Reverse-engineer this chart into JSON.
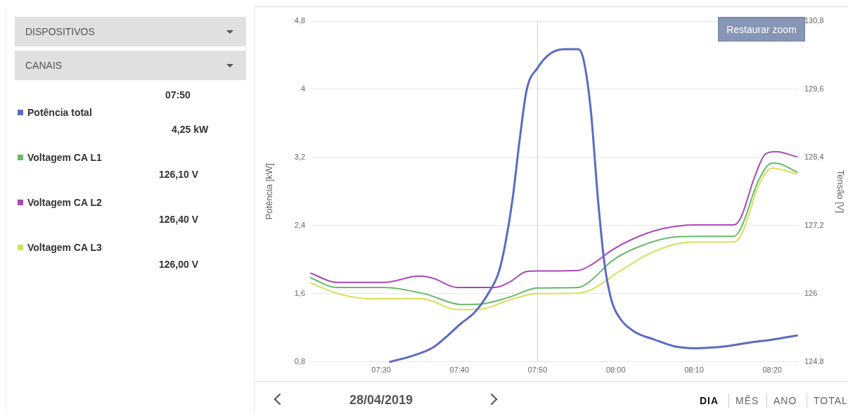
{
  "chart_data": {
    "type": "line",
    "xlabel": null,
    "ylabel": "Potência [kW]",
    "y2label": "Tensão [V]",
    "xlim": [
      7.35,
      8.39
    ],
    "xticks": [
      {
        "value": 7.5,
        "label": "07:30"
      },
      {
        "value": 7.6667,
        "label": "07:40"
      },
      {
        "value": 7.8333,
        "label": "07:50"
      },
      {
        "value": 8,
        "label": "08:00"
      },
      {
        "value": 8.1667,
        "label": "08:10"
      },
      {
        "value": 8.3333,
        "label": "08:20"
      }
    ],
    "ylim": [
      0.8,
      4.8
    ],
    "yticks": [
      {
        "value": 0.8,
        "label": "0,8"
      },
      {
        "value": 1.6,
        "label": "1,6"
      },
      {
        "value": 2.4,
        "label": "2,4"
      },
      {
        "value": 3.2,
        "label": "3,2"
      },
      {
        "value": 4,
        "label": "4"
      },
      {
        "value": 4.8,
        "label": "4,8"
      }
    ],
    "y2lim": [
      124.8,
      130.8
    ],
    "y2ticks": [
      {
        "value": 124.8,
        "label": "124,8"
      },
      {
        "value": 126,
        "label": "126"
      },
      {
        "value": 127.2,
        "label": "127,2"
      },
      {
        "value": 128.4,
        "label": "128,4"
      },
      {
        "value": 129.6,
        "label": "129,6"
      },
      {
        "value": 130.8,
        "label": "130,8"
      }
    ],
    "grid": "y",
    "legend": "left",
    "marker": "none",
    "line_style": "solid",
    "ref_lines": [
      {
        "axis": "x",
        "value": 7.833333,
        "color": "#cccccc"
      }
    ],
    "series": [
      {
        "name": "Potência total",
        "color": "#5c6bc0",
        "x": [
          7.519,
          7.566,
          7.611,
          7.64,
          7.67,
          7.699,
          7.729,
          7.751,
          7.765,
          7.78,
          7.795,
          7.81,
          7.8333,
          7.861,
          7.891,
          7.92,
          7.932,
          7.947,
          7.962,
          7.976,
          7.991,
          8.009,
          8.038,
          8.083,
          8.127,
          8.171,
          8.23,
          8.289,
          8.333,
          8.386
        ],
        "values": [
          0.8,
          0.87,
          0.97,
          1.1,
          1.25,
          1.38,
          1.61,
          1.86,
          2.2,
          2.71,
          3.4,
          3.99,
          4.25,
          4.42,
          4.47,
          4.47,
          4.33,
          3.74,
          2.71,
          1.95,
          1.52,
          1.31,
          1.16,
          1.06,
          0.98,
          0.96,
          0.98,
          1.03,
          1.06,
          1.11
        ]
      },
      {
        "name": "Voltagem CA L1",
        "color": "#66bb6a",
        "axis": "y2",
        "x": [
          7.35,
          7.404,
          7.507,
          7.596,
          7.67,
          7.714,
          7.773,
          7.8333,
          7.92,
          7.942,
          7.994,
          8.053,
          8.127,
          8.171,
          8.252,
          8.267,
          8.304,
          8.333,
          8.348,
          8.386
        ],
        "values": [
          126.28,
          126.11,
          126.11,
          125.99,
          125.81,
          125.82,
          125.94,
          126.1,
          126.11,
          126.2,
          126.59,
          126.84,
          127.0,
          127.01,
          127.01,
          127.16,
          127.99,
          128.3,
          128.29,
          128.14
        ]
      },
      {
        "name": "Voltagem CA L2",
        "color": "#ab47bc",
        "axis": "y2",
        "x": [
          7.35,
          7.404,
          7.507,
          7.581,
          7.611,
          7.662,
          7.743,
          7.773,
          7.81,
          7.8333,
          7.92,
          7.95,
          7.994,
          8.038,
          8.097,
          8.171,
          8.252,
          8.267,
          8.296,
          8.319,
          8.341,
          8.386
        ],
        "values": [
          126.36,
          126.2,
          126.2,
          126.31,
          126.27,
          126.11,
          126.11,
          126.2,
          126.39,
          126.4,
          126.41,
          126.52,
          126.78,
          126.97,
          127.14,
          127.21,
          127.21,
          127.35,
          128.06,
          128.46,
          128.5,
          128.41
        ]
      },
      {
        "name": "Voltagem CA L3",
        "color": "#d4e157",
        "axis": "y2",
        "x": [
          7.35,
          7.404,
          7.478,
          7.588,
          7.662,
          7.714,
          7.773,
          7.8333,
          7.92,
          7.95,
          8.009,
          8.068,
          8.127,
          8.171,
          8.252,
          8.271,
          8.304,
          8.333,
          8.355,
          8.386
        ],
        "values": [
          126.19,
          126.01,
          125.91,
          125.91,
          125.72,
          125.73,
          125.89,
          126.0,
          126.01,
          126.08,
          126.4,
          126.69,
          126.87,
          126.91,
          126.91,
          127.1,
          127.9,
          128.21,
          128.18,
          128.11
        ]
      }
    ],
    "annotations": [
      "DISPOSITIVOS",
      "CANAIS",
      "4,25 kW",
      "126,10 V",
      "126,40 V",
      "126,00 V",
      "Restaurar zoom",
      "28/04/2019",
      "DIA",
      "MÊS",
      "ANO",
      "TOTAL",
      "07:50"
    ]
  }
}
